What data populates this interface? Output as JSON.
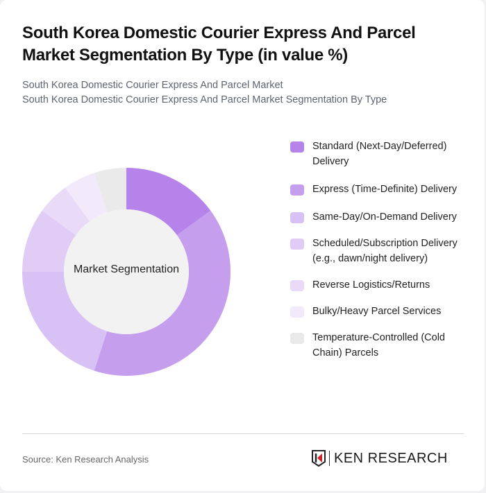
{
  "header": {
    "title": "South Korea Domestic Courier Express And Parcel Market Segmentation By Type (in value %)",
    "subtitle_line1": "South Korea Domestic Courier Express And Parcel Market",
    "subtitle_line2": "South Korea Domestic Courier Express And Parcel Market Segmentation By Type"
  },
  "chart": {
    "center_label": "Market Segmentation"
  },
  "footer": {
    "source": "Source: Ken Research Analysis",
    "logo_text": "KEN RESEARCH"
  },
  "chart_data": {
    "type": "pie",
    "subtype": "donut",
    "title": "South Korea Domestic Courier Express And Parcel Market Segmentation By Type (in value %)",
    "center_label": "Market Segmentation",
    "categories": [
      "Standard (Next-Day/Deferred) Delivery",
      "Express (Time-Definite) Delivery",
      "Same-Day/On-Demand Delivery",
      "Scheduled/Subscription Delivery (e.g., dawn/night delivery)",
      "Reverse Logistics/Returns",
      "Bulky/Heavy Parcel Services",
      "Temperature-Controlled (Cold Chain) Parcels"
    ],
    "values": [
      15,
      40,
      20,
      10,
      5,
      5,
      5
    ],
    "colors": [
      "#B583EA",
      "#C59EEE",
      "#D8C1F5",
      "#E1CCF6",
      "#E9DAF8",
      "#F2EAFB",
      "#EAEAEA"
    ],
    "legend_position": "right",
    "unit": "%"
  }
}
